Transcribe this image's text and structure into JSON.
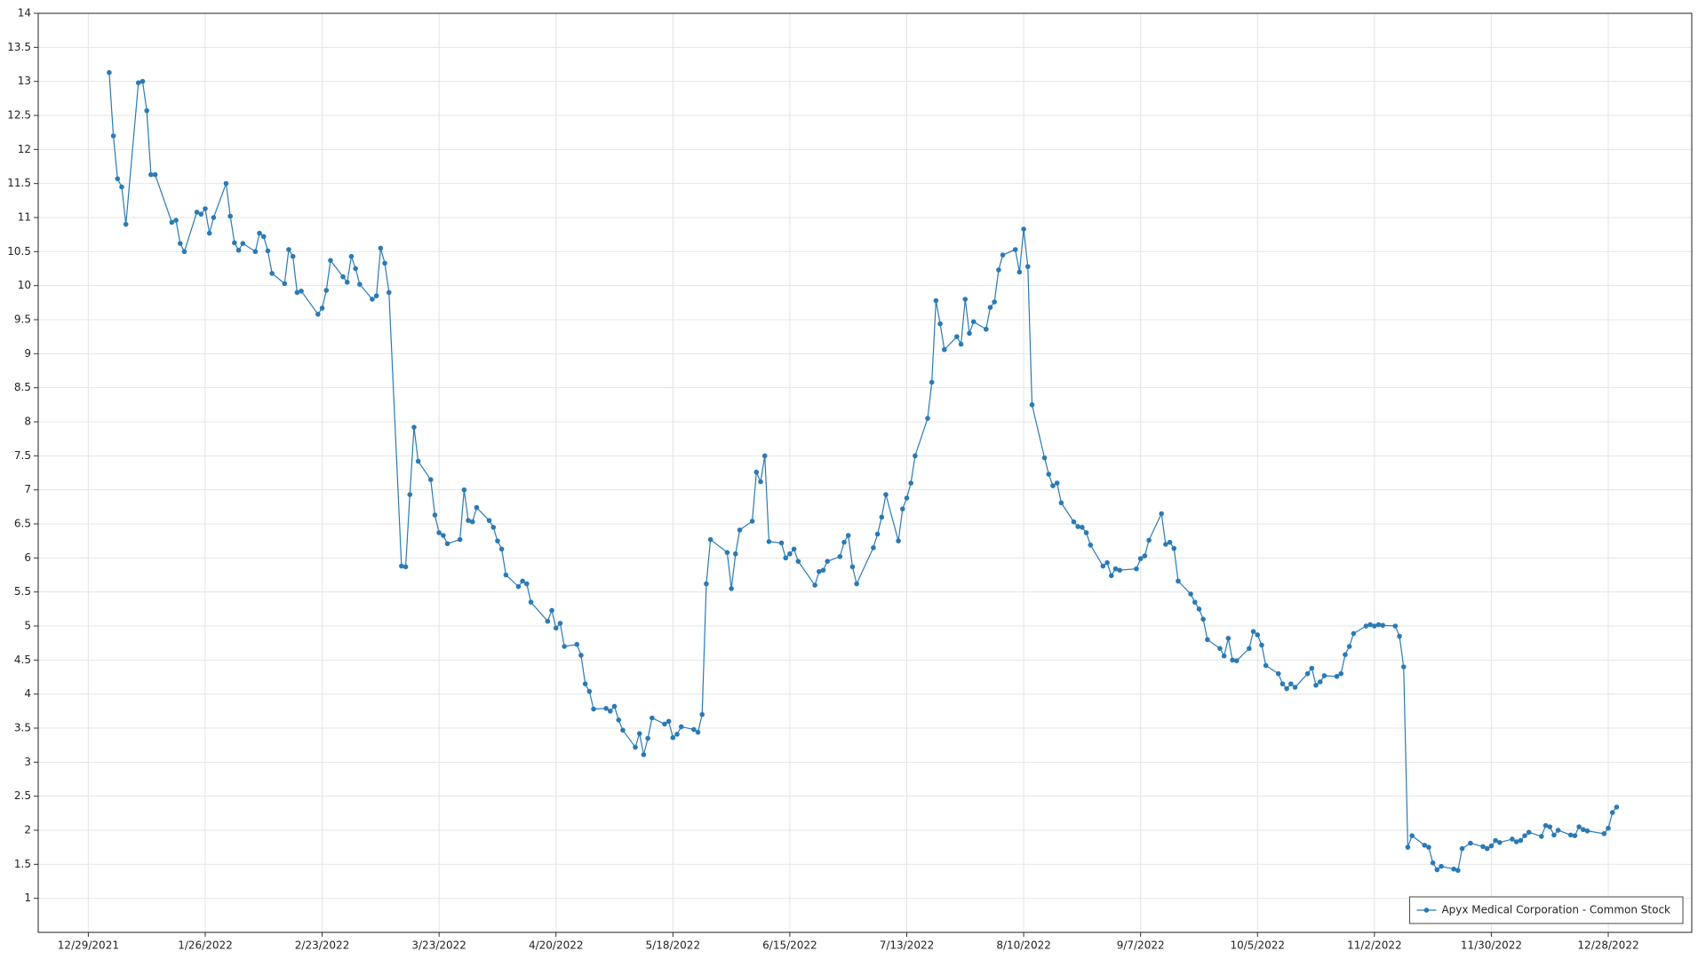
{
  "chart_data": {
    "type": "line",
    "x": [
      "1/3/2022",
      "1/4/2022",
      "1/5/2022",
      "1/6/2022",
      "1/7/2022",
      "1/10/2022",
      "1/11/2022",
      "1/12/2022",
      "1/13/2022",
      "1/14/2022",
      "1/18/2022",
      "1/19/2022",
      "1/20/2022",
      "1/21/2022",
      "1/24/2022",
      "1/25/2022",
      "1/26/2022",
      "1/27/2022",
      "1/28/2022",
      "1/31/2022",
      "2/1/2022",
      "2/2/2022",
      "2/3/2022",
      "2/4/2022",
      "2/7/2022",
      "2/8/2022",
      "2/9/2022",
      "2/10/2022",
      "2/11/2022",
      "2/14/2022",
      "2/15/2022",
      "2/16/2022",
      "2/17/2022",
      "2/18/2022",
      "2/22/2022",
      "2/23/2022",
      "2/24/2022",
      "2/25/2022",
      "2/28/2022",
      "3/1/2022",
      "3/2/2022",
      "3/3/2022",
      "3/4/2022",
      "3/7/2022",
      "3/8/2022",
      "3/9/2022",
      "3/10/2022",
      "3/11/2022",
      "3/14/2022",
      "3/15/2022",
      "3/16/2022",
      "3/17/2022",
      "3/18/2022",
      "3/21/2022",
      "3/22/2022",
      "3/23/2022",
      "3/24/2022",
      "3/25/2022",
      "3/28/2022",
      "3/29/2022",
      "3/30/2022",
      "3/31/2022",
      "4/1/2022",
      "4/4/2022",
      "4/5/2022",
      "4/6/2022",
      "4/7/2022",
      "4/8/2022",
      "4/11/2022",
      "4/12/2022",
      "4/13/2022",
      "4/14/2022",
      "4/18/2022",
      "4/19/2022",
      "4/20/2022",
      "4/21/2022",
      "4/22/2022",
      "4/25/2022",
      "4/26/2022",
      "4/27/2022",
      "4/28/2022",
      "4/29/2022",
      "5/2/2022",
      "5/3/2022",
      "5/4/2022",
      "5/5/2022",
      "5/6/2022",
      "5/9/2022",
      "5/10/2022",
      "5/11/2022",
      "5/12/2022",
      "5/13/2022",
      "5/16/2022",
      "5/17/2022",
      "5/18/2022",
      "5/19/2022",
      "5/20/2022",
      "5/23/2022",
      "5/24/2022",
      "5/25/2022",
      "5/26/2022",
      "5/27/2022",
      "5/31/2022",
      "6/1/2022",
      "6/2/2022",
      "6/3/2022",
      "6/6/2022",
      "6/7/2022",
      "6/8/2022",
      "6/9/2022",
      "6/10/2022",
      "6/13/2022",
      "6/14/2022",
      "6/15/2022",
      "6/16/2022",
      "6/17/2022",
      "6/21/2022",
      "6/22/2022",
      "6/23/2022",
      "6/24/2022",
      "6/27/2022",
      "6/28/2022",
      "6/29/2022",
      "6/30/2022",
      "7/1/2022",
      "7/5/2022",
      "7/6/2022",
      "7/7/2022",
      "7/8/2022",
      "7/11/2022",
      "7/12/2022",
      "7/13/2022",
      "7/14/2022",
      "7/15/2022",
      "7/18/2022",
      "7/19/2022",
      "7/20/2022",
      "7/21/2022",
      "7/22/2022",
      "7/25/2022",
      "7/26/2022",
      "7/27/2022",
      "7/28/2022",
      "7/29/2022",
      "8/1/2022",
      "8/2/2022",
      "8/3/2022",
      "8/4/2022",
      "8/5/2022",
      "8/8/2022",
      "8/9/2022",
      "8/10/2022",
      "8/11/2022",
      "8/12/2022",
      "8/15/2022",
      "8/16/2022",
      "8/17/2022",
      "8/18/2022",
      "8/19/2022",
      "8/22/2022",
      "8/23/2022",
      "8/24/2022",
      "8/25/2022",
      "8/26/2022",
      "8/29/2022",
      "8/30/2022",
      "8/31/2022",
      "9/1/2022",
      "9/2/2022",
      "9/6/2022",
      "9/7/2022",
      "9/8/2022",
      "9/9/2022",
      "9/12/2022",
      "9/13/2022",
      "9/14/2022",
      "9/15/2022",
      "9/16/2022",
      "9/19/2022",
      "9/20/2022",
      "9/21/2022",
      "9/22/2022",
      "9/23/2022",
      "9/26/2022",
      "9/27/2022",
      "9/28/2022",
      "9/29/2022",
      "9/30/2022",
      "10/3/2022",
      "10/4/2022",
      "10/5/2022",
      "10/6/2022",
      "10/7/2022",
      "10/10/2022",
      "10/11/2022",
      "10/12/2022",
      "10/13/2022",
      "10/14/2022",
      "10/17/2022",
      "10/18/2022",
      "10/19/2022",
      "10/20/2022",
      "10/21/2022",
      "10/24/2022",
      "10/25/2022",
      "10/26/2022",
      "10/27/2022",
      "10/28/2022",
      "10/31/2022",
      "11/1/2022",
      "11/2/2022",
      "11/3/2022",
      "11/4/2022",
      "11/7/2022",
      "11/8/2022",
      "11/9/2022",
      "11/10/2022",
      "11/11/2022",
      "11/14/2022",
      "11/15/2022",
      "11/16/2022",
      "11/17/2022",
      "11/18/2022",
      "11/21/2022",
      "11/22/2022",
      "11/23/2022",
      "11/25/2022",
      "11/28/2022",
      "11/29/2022",
      "11/30/2022",
      "12/1/2022",
      "12/2/2022",
      "12/5/2022",
      "12/6/2022",
      "12/7/2022",
      "12/8/2022",
      "12/9/2022",
      "12/12/2022",
      "12/13/2022",
      "12/14/2022",
      "12/15/2022",
      "12/16/2022",
      "12/19/2022",
      "12/20/2022",
      "12/21/2022",
      "12/22/2022",
      "12/23/2022",
      "12/27/2022",
      "12/28/2022",
      "12/29/2022",
      "12/30/2022"
    ],
    "series": [
      {
        "name": "Apyx Medical Corporation - Common Stock",
        "color": "#2a7ab5",
        "values": [
          13.13,
          12.2,
          11.57,
          11.45,
          10.9,
          12.98,
          13.0,
          12.57,
          11.63,
          11.63,
          10.93,
          10.96,
          10.62,
          10.5,
          11.08,
          11.05,
          11.13,
          10.77,
          11.0,
          11.5,
          11.02,
          10.63,
          10.52,
          10.62,
          10.5,
          10.77,
          10.72,
          10.51,
          10.18,
          10.03,
          10.53,
          10.43,
          9.9,
          9.92,
          9.58,
          9.67,
          9.93,
          10.37,
          10.13,
          10.05,
          10.43,
          10.25,
          10.02,
          9.8,
          9.85,
          10.55,
          10.33,
          9.9,
          5.88,
          5.87,
          6.93,
          7.92,
          7.42,
          7.15,
          6.63,
          6.37,
          6.33,
          6.21,
          6.27,
          7.0,
          6.55,
          6.53,
          6.74,
          6.55,
          6.45,
          6.25,
          6.13,
          5.75,
          5.58,
          5.66,
          5.62,
          5.35,
          5.07,
          5.23,
          4.97,
          5.04,
          4.7,
          4.73,
          4.57,
          4.15,
          4.04,
          3.78,
          3.79,
          3.75,
          3.82,
          3.62,
          3.47,
          3.22,
          3.42,
          3.11,
          3.35,
          3.65,
          3.56,
          3.6,
          3.36,
          3.41,
          3.52,
          3.48,
          3.44,
          3.7,
          5.62,
          6.27,
          6.08,
          5.55,
          6.06,
          6.41,
          6.54,
          7.26,
          7.12,
          7.5,
          6.24,
          6.22,
          6.0,
          6.06,
          6.13,
          5.95,
          5.6,
          5.8,
          5.82,
          5.95,
          6.02,
          6.23,
          6.33,
          5.87,
          5.62,
          6.15,
          6.35,
          6.6,
          6.93,
          6.25,
          6.72,
          6.88,
          7.1,
          7.5,
          8.05,
          8.58,
          9.78,
          9.44,
          9.06,
          9.25,
          9.14,
          9.8,
          9.3,
          9.47,
          9.36,
          9.68,
          9.76,
          10.23,
          10.45,
          10.53,
          10.2,
          10.83,
          10.28,
          8.25,
          7.47,
          7.23,
          7.06,
          7.1,
          6.81,
          6.53,
          6.46,
          6.45,
          6.37,
          6.19,
          5.88,
          5.93,
          5.74,
          5.84,
          5.82,
          5.84,
          5.99,
          6.03,
          6.26,
          6.65,
          6.2,
          6.23,
          6.14,
          5.66,
          5.47,
          5.35,
          5.25,
          5.1,
          4.8,
          4.67,
          4.56,
          4.82,
          4.5,
          4.49,
          4.67,
          4.92,
          4.87,
          4.72,
          4.42,
          4.3,
          4.15,
          4.08,
          4.15,
          4.1,
          4.3,
          4.38,
          4.13,
          4.18,
          4.27,
          4.26,
          4.3,
          4.58,
          4.7,
          4.89,
          5.0,
          5.02,
          5.0,
          5.02,
          5.01,
          5.0,
          4.85,
          4.4,
          1.75,
          1.92,
          1.78,
          1.75,
          1.52,
          1.42,
          1.47,
          1.43,
          1.41,
          1.73,
          1.81,
          1.76,
          1.73,
          1.77,
          1.85,
          1.82,
          1.87,
          1.83,
          1.85,
          1.92,
          1.97,
          1.91,
          2.07,
          2.05,
          1.93,
          2.0,
          1.93,
          1.92,
          2.05,
          2.01,
          1.99,
          1.95,
          2.03,
          2.26,
          2.34
        ]
      }
    ],
    "xlim": [
      "12/17/2021",
      "1/17/2023"
    ],
    "xticks": [
      "12/29/2021",
      "1/26/2022",
      "2/23/2022",
      "3/23/2022",
      "4/20/2022",
      "5/18/2022",
      "6/15/2022",
      "7/13/2022",
      "8/10/2022",
      "9/7/2022",
      "10/5/2022",
      "11/2/2022",
      "11/30/2022",
      "12/28/2022"
    ],
    "ylim": [
      0.5,
      14
    ],
    "yticks": [
      1,
      1.5,
      2,
      2.5,
      3,
      3.5,
      4,
      4.5,
      5,
      5.5,
      6,
      6.5,
      7,
      7.5,
      8,
      8.5,
      9,
      9.5,
      10,
      10.5,
      11,
      11.5,
      12,
      12.5,
      13,
      13.5,
      14
    ],
    "grid": true,
    "markers": true,
    "legend": "lower right"
  }
}
